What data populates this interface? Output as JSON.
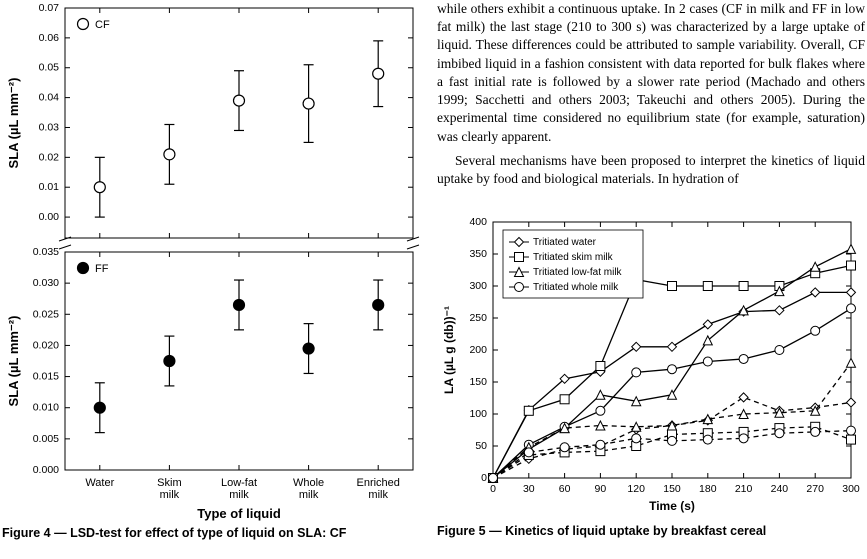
{
  "right_text": {
    "p1_fragment": "while others exhibit a continuous uptake. In 2 cases (CF in milk and FF in low fat milk) the last stage (210 to 300 s) was characterized by a large uptake of liquid. These differences could be attributed to sample variability. Overall, CF imbibed liquid in a fashion consistent with data reported for bulk flakes where a fast initial rate is followed by a slower rate period (Machado and others 1999; Sacchetti and others 2003; Takeuchi and others 2005). During the experimental time considered no equilibrium state (for example, saturation) was clearly apparent.",
    "p2": "Several mechanisms have been proposed to interpret the kinetics of liquid uptake by food and biological materials. In hydration of"
  },
  "fig4": {
    "caption": "Figure 4 — LSD-test for effect of type of liquid on SLA: CF",
    "xaxis_label": "Type of liquid",
    "categories": [
      "Water",
      "Skim\nmilk",
      "Low-fat\nmilk",
      "Whole\nmilk",
      "Enriched\nmilk"
    ],
    "top": {
      "legend": "CF",
      "ylabel": "SLA (µL mm⁻²)",
      "ylim": [
        -0.007,
        0.07
      ],
      "yticks": [
        0.0,
        0.01,
        0.02,
        0.03,
        0.04,
        0.05,
        0.06,
        0.07
      ],
      "values": [
        0.01,
        0.021,
        0.039,
        0.038,
        0.048
      ],
      "err": [
        0.01,
        0.01,
        0.01,
        0.013,
        0.011
      ],
      "marker_fill": "#ffffff",
      "marker_stroke": "#000000",
      "error_color": "#000000"
    },
    "bottom": {
      "legend": "FF",
      "ylabel": "SLA (µL mm⁻²)",
      "ylim": [
        0.0,
        0.035
      ],
      "yticks": [
        0.0,
        0.005,
        0.01,
        0.015,
        0.02,
        0.025,
        0.03,
        0.035
      ],
      "values": [
        0.01,
        0.0175,
        0.0265,
        0.0195,
        0.0265
      ],
      "err": [
        0.004,
        0.004,
        0.004,
        0.004,
        0.004
      ],
      "marker_fill": "#000000",
      "marker_stroke": "#000000",
      "error_color": "#000000"
    },
    "tick_fontsize": 10.5,
    "label_fontsize": 13,
    "background": "#ffffff"
  },
  "fig5": {
    "caption": "Figure 5 — Kinetics of liquid uptake by breakfast cereal",
    "xlabel": "Time (s)",
    "ylabel": "LA (µL g (db))⁻¹",
    "xlim": [
      0,
      300
    ],
    "ylim": [
      0,
      400
    ],
    "xticks": [
      0,
      30,
      60,
      90,
      120,
      150,
      180,
      210,
      240,
      270,
      300
    ],
    "yticks": [
      0,
      50,
      100,
      150,
      200,
      250,
      300,
      350,
      400
    ],
    "legend_items": [
      {
        "label": "Tritiated water",
        "marker": "diamond"
      },
      {
        "label": "Tritiated skim milk",
        "marker": "square"
      },
      {
        "label": "Tritiated low-fat milk",
        "marker": "triangle"
      },
      {
        "label": "Tritiated whole milk",
        "marker": "circle"
      }
    ],
    "series_solid": {
      "water": {
        "marker": "diamond",
        "x": [
          0,
          30,
          60,
          90,
          120,
          150,
          180,
          210,
          240,
          270,
          300
        ],
        "y": [
          0,
          106,
          155,
          166,
          205,
          205,
          240,
          260,
          262,
          290,
          290
        ]
      },
      "skim": {
        "marker": "square",
        "x": [
          0,
          30,
          60,
          90,
          120,
          150,
          180,
          210,
          240,
          270,
          300
        ],
        "y": [
          0,
          105,
          123,
          175,
          310,
          300,
          300,
          300,
          300,
          320,
          332
        ]
      },
      "lowfat": {
        "marker": "triangle",
        "x": [
          0,
          30,
          60,
          90,
          120,
          150,
          180,
          210,
          240,
          270,
          300
        ],
        "y": [
          0,
          45,
          78,
          130,
          120,
          130,
          215,
          262,
          292,
          330,
          358
        ]
      },
      "whole": {
        "marker": "circle",
        "x": [
          0,
          30,
          60,
          90,
          120,
          150,
          180,
          210,
          240,
          270,
          300
        ],
        "y": [
          0,
          52,
          80,
          105,
          165,
          170,
          182,
          186,
          200,
          230,
          265
        ]
      }
    },
    "series_dashed": {
      "water": {
        "marker": "diamond",
        "x": [
          0,
          30,
          60,
          90,
          120,
          150,
          180,
          210,
          240,
          270,
          300
        ],
        "y": [
          0,
          30,
          45,
          50,
          76,
          82,
          90,
          126,
          105,
          110,
          118
        ]
      },
      "skim": {
        "marker": "square",
        "x": [
          0,
          30,
          60,
          90,
          120,
          150,
          180,
          210,
          240,
          270,
          300
        ],
        "y": [
          0,
          36,
          40,
          42,
          50,
          68,
          70,
          72,
          78,
          80,
          60
        ]
      },
      "lowfat": {
        "marker": "triangle",
        "x": [
          0,
          30,
          60,
          90,
          120,
          150,
          180,
          210,
          240,
          270,
          300
        ],
        "y": [
          0,
          48,
          78,
          82,
          80,
          82,
          92,
          100,
          102,
          105,
          180
        ]
      },
      "whole": {
        "marker": "circle",
        "x": [
          0,
          30,
          60,
          90,
          120,
          150,
          180,
          210,
          240,
          270,
          300
        ],
        "y": [
          0,
          40,
          48,
          52,
          62,
          58,
          60,
          62,
          70,
          72,
          74
        ]
      }
    },
    "stroke_color": "#000000",
    "background": "#ffffff",
    "tick_fontsize": 10.5,
    "label_fontsize": 12
  }
}
